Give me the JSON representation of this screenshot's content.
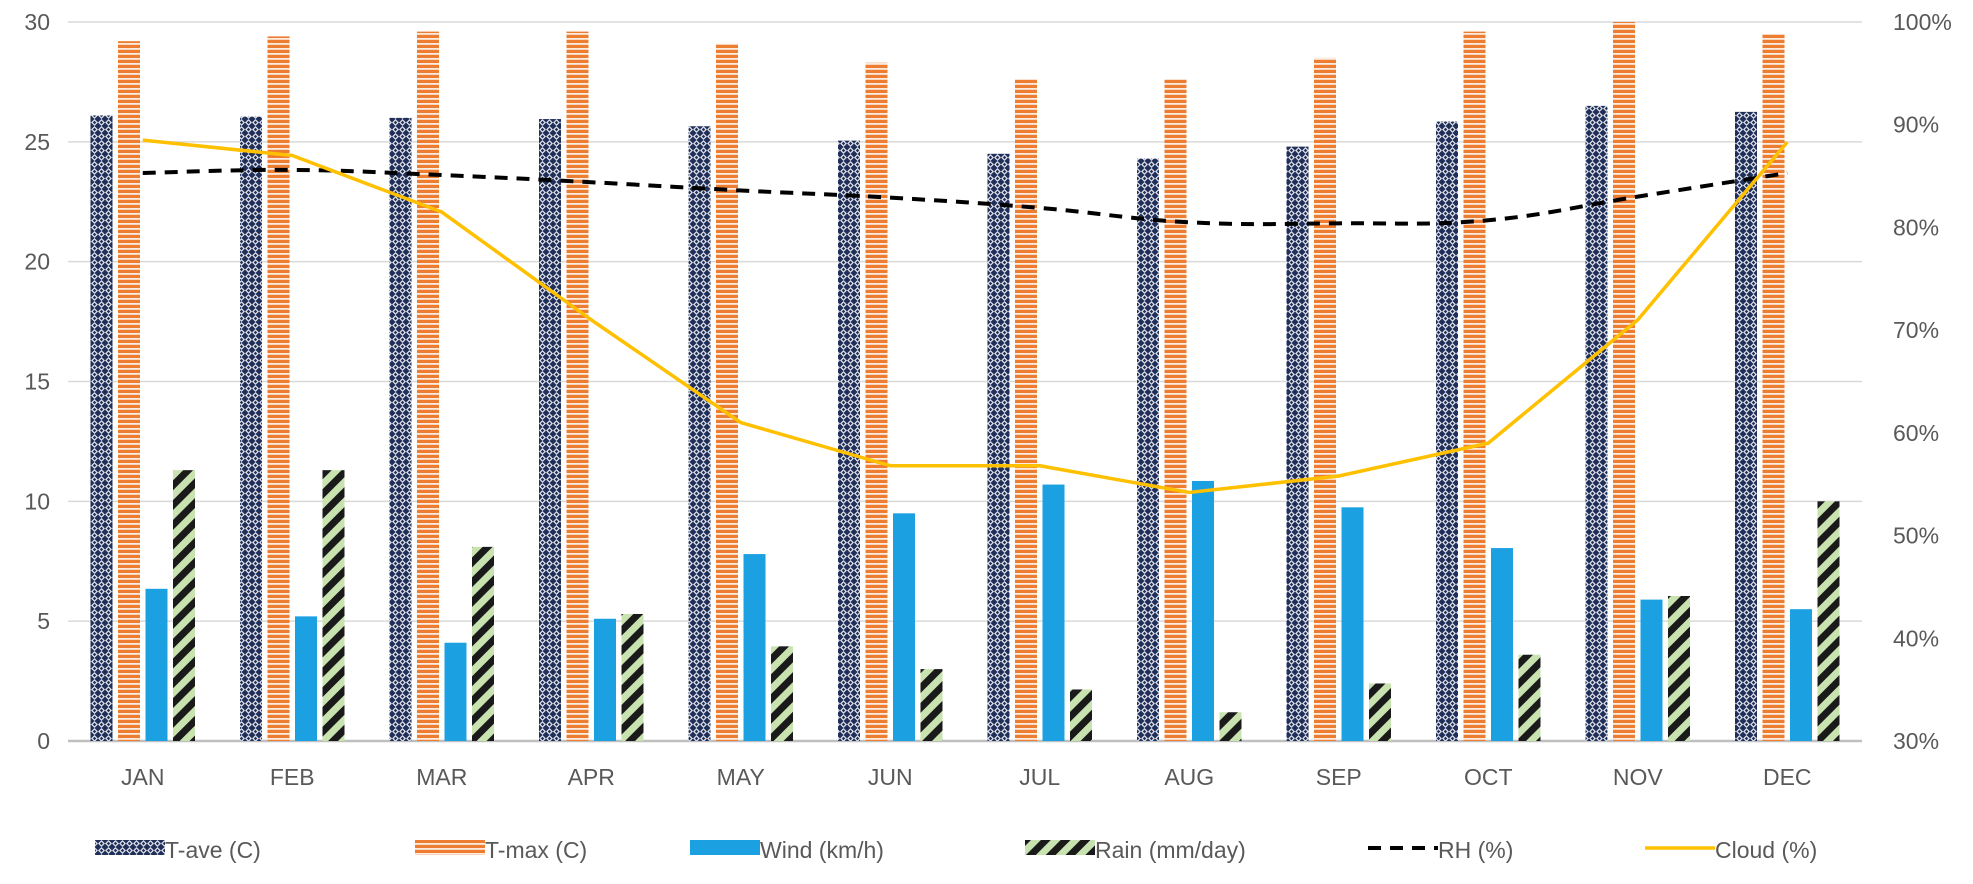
{
  "chart_data": {
    "type": "bar",
    "categories": [
      "JAN",
      "FEB",
      "MAR",
      "APR",
      "MAY",
      "JUN",
      "JUL",
      "AUG",
      "SEP",
      "OCT",
      "NOV",
      "DEC"
    ],
    "series": [
      {
        "name": "T-ave (C)",
        "type": "bar",
        "axis": "left",
        "pattern": "dots",
        "color": "#1f2f5a",
        "values": [
          26.1,
          26.05,
          26.0,
          25.95,
          25.65,
          25.05,
          24.5,
          24.3,
          24.8,
          25.85,
          26.5,
          26.25
        ]
      },
      {
        "name": "T-max (C)",
        "type": "bar",
        "axis": "left",
        "pattern": "hstripes",
        "color": "#ed7d31",
        "values": [
          29.2,
          29.4,
          29.6,
          29.6,
          29.1,
          28.3,
          27.6,
          27.6,
          28.5,
          29.6,
          30.0,
          29.5
        ]
      },
      {
        "name": "Wind (km/h)",
        "type": "bar",
        "axis": "left",
        "pattern": "solid",
        "color": "#1ba1e2",
        "values": [
          6.35,
          5.2,
          4.1,
          5.1,
          7.8,
          9.5,
          10.7,
          10.85,
          9.75,
          8.05,
          5.9,
          5.5
        ]
      },
      {
        "name": "Rain (mm/day)",
        "type": "bar",
        "axis": "left",
        "pattern": "diag",
        "color": "#1a1a1a",
        "values": [
          11.3,
          11.3,
          8.1,
          5.3,
          3.95,
          3.0,
          2.15,
          1.2,
          2.4,
          3.6,
          6.05,
          10.0
        ]
      },
      {
        "name": "RH (%)",
        "type": "line",
        "axis": "right",
        "dash": true,
        "color": "#000000",
        "values": [
          85.3,
          85.6,
          85.1,
          84.4,
          83.6,
          82.9,
          81.9,
          80.5,
          80.4,
          80.7,
          83.0,
          85.3
        ]
      },
      {
        "name": "Cloud (%)",
        "type": "line",
        "axis": "right",
        "dash": false,
        "color": "#ffc000",
        "values": [
          88.5,
          87.0,
          81.5,
          71.0,
          61.0,
          56.8,
          56.8,
          54.2,
          55.8,
          59.0,
          71.0,
          88.3
        ]
      }
    ],
    "y_left": {
      "ylim": [
        0,
        30
      ],
      "ticks": [
        "0",
        "5",
        "10",
        "15",
        "20",
        "25",
        "30"
      ]
    },
    "y_right": {
      "ylim": [
        30,
        100
      ],
      "ticks": [
        "30%",
        "40%",
        "50%",
        "60%",
        "70%",
        "80%",
        "90%",
        "100%"
      ]
    },
    "grid": true,
    "legend_position": "bottom"
  }
}
